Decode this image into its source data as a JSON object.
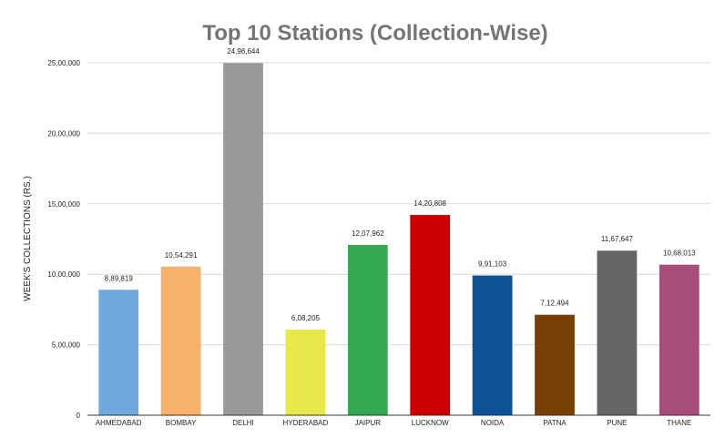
{
  "chart_data": {
    "type": "bar",
    "title": "Top 10 Stations (Collection-Wise)",
    "ylabel": "WEEK'S COLLECTIONS (RS.)",
    "xlabel": "",
    "categories": [
      "AHMEDABAD",
      "BOMBAY",
      "DELHI",
      "HYDERABAD",
      "JAIPUR",
      "LUCKNOW",
      "NOIDA",
      "PATNA",
      "PUNE",
      "THANE"
    ],
    "values": [
      889819,
      1054291,
      2498644,
      608205,
      1207962,
      1420808,
      991103,
      712494,
      1167647,
      1068013
    ],
    "value_labels": [
      "8,89,819",
      "10,54,291",
      "24,98,644",
      "6,08,205",
      "12,07,962",
      "14,20,808",
      "9,91,103",
      "7,12,494",
      "11,67,647",
      "10,68,013"
    ],
    "colors": [
      "#6fa8dc",
      "#f6b26b",
      "#999999",
      "#e8e84a",
      "#34a853",
      "#cc0000",
      "#0b5394",
      "#783f04",
      "#666666",
      "#a64d79"
    ],
    "ylim": [
      0,
      2500000
    ],
    "yticks": [
      0,
      500000,
      1000000,
      1500000,
      2000000,
      2500000
    ],
    "ytick_labels": [
      "0",
      "5,00,000",
      "10,00,000",
      "15,00,000",
      "20,00,000",
      "25,00,000"
    ],
    "grid": true,
    "legend": "none"
  }
}
